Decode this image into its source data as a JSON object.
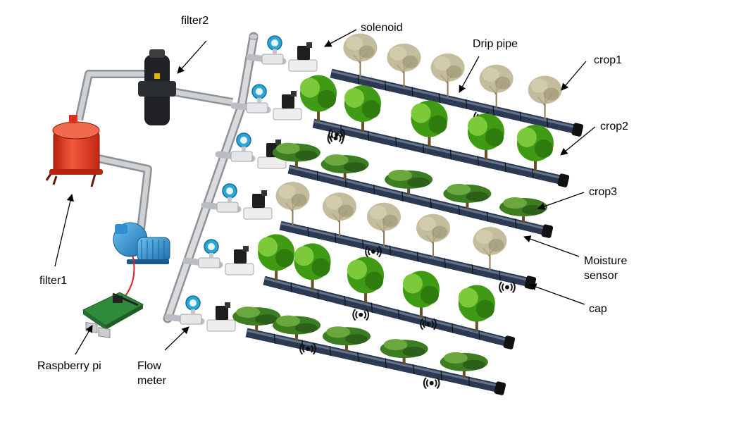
{
  "labels": {
    "filter2": "filter2",
    "solenoid": "solenoid",
    "drip_pipe": "Drip pipe",
    "crop1": "crop1",
    "crop2": "crop2",
    "crop3": "crop3",
    "moisture_sensor": [
      "Moisture",
      "sensor"
    ],
    "cap": "cap",
    "filter1": "filter1",
    "raspberry_pi": "Raspberry pi",
    "flow_meter": [
      "Flow",
      "meter"
    ]
  },
  "colors": {
    "filter1_tank": "#e8321e",
    "filter2_body": "#1f2124",
    "pump": "#2f8fd0",
    "flow_meter_head": "#2aa7d8",
    "drip_pipe": "#2b3a52",
    "end_cap": "#111111",
    "main_pipe": "#b9bcc0",
    "signal_wire": "#e0202a",
    "board": "#2f8a3c",
    "tree_green": "#4caf1e",
    "tree_dry": "#b8b08c"
  },
  "rows": [
    {
      "trees": "dry"
    },
    {
      "trees": "bushy"
    },
    {
      "trees": "wide"
    },
    {
      "trees": "dry"
    },
    {
      "trees": "bushy"
    },
    {
      "trees": "wide"
    }
  ],
  "icons": [
    "moisture-sensor-icon",
    "solenoid-valve-icon",
    "flow-meter-icon",
    "pump-icon",
    "filter-icon",
    "raspberry-pi-icon",
    "tree-icon"
  ]
}
